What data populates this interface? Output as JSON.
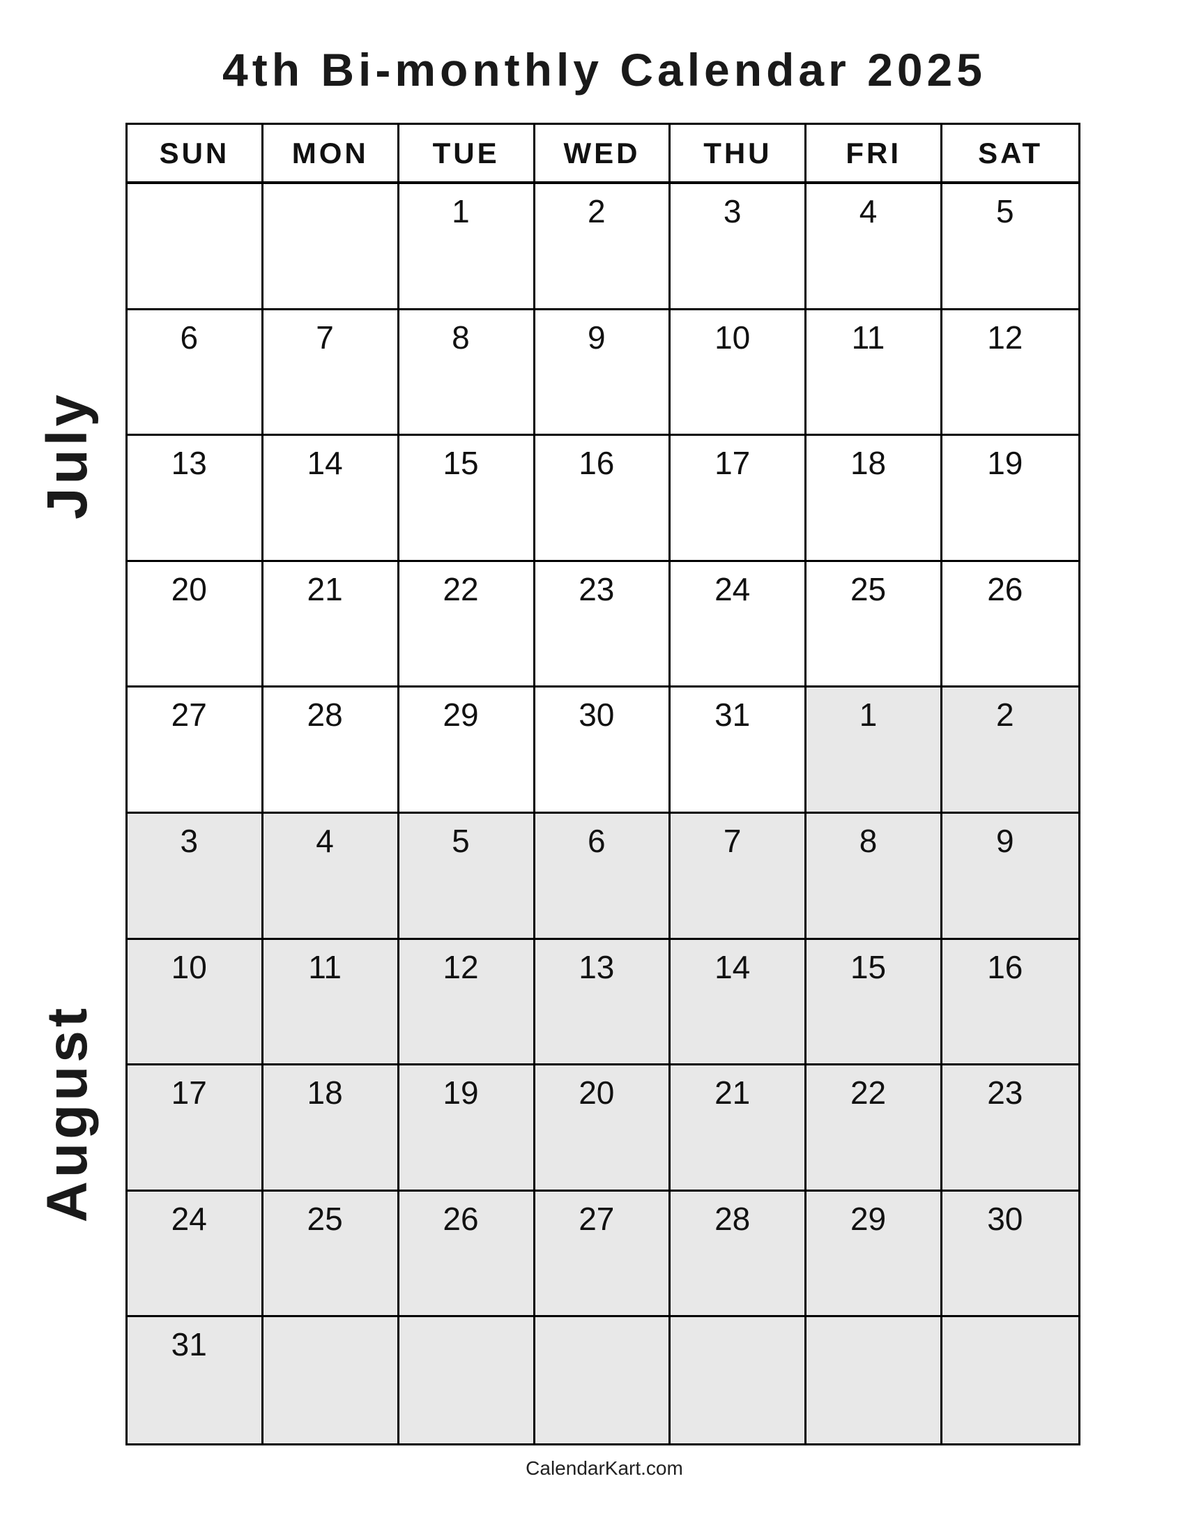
{
  "title": "4th Bi-monthly Calendar 2025",
  "months": [
    "July",
    "August"
  ],
  "weekdays": [
    "SUN",
    "MON",
    "TUE",
    "WED",
    "THU",
    "FRI",
    "SAT"
  ],
  "shade_color": "#e8e8e8",
  "weeks": [
    [
      {
        "d": "",
        "s": false
      },
      {
        "d": "",
        "s": false
      },
      {
        "d": "1",
        "s": false
      },
      {
        "d": "2",
        "s": false
      },
      {
        "d": "3",
        "s": false
      },
      {
        "d": "4",
        "s": false
      },
      {
        "d": "5",
        "s": false
      }
    ],
    [
      {
        "d": "6",
        "s": false
      },
      {
        "d": "7",
        "s": false
      },
      {
        "d": "8",
        "s": false
      },
      {
        "d": "9",
        "s": false
      },
      {
        "d": "10",
        "s": false
      },
      {
        "d": "11",
        "s": false
      },
      {
        "d": "12",
        "s": false
      }
    ],
    [
      {
        "d": "13",
        "s": false
      },
      {
        "d": "14",
        "s": false
      },
      {
        "d": "15",
        "s": false
      },
      {
        "d": "16",
        "s": false
      },
      {
        "d": "17",
        "s": false
      },
      {
        "d": "18",
        "s": false
      },
      {
        "d": "19",
        "s": false
      }
    ],
    [
      {
        "d": "20",
        "s": false
      },
      {
        "d": "21",
        "s": false
      },
      {
        "d": "22",
        "s": false
      },
      {
        "d": "23",
        "s": false
      },
      {
        "d": "24",
        "s": false
      },
      {
        "d": "25",
        "s": false
      },
      {
        "d": "26",
        "s": false
      }
    ],
    [
      {
        "d": "27",
        "s": false
      },
      {
        "d": "28",
        "s": false
      },
      {
        "d": "29",
        "s": false
      },
      {
        "d": "30",
        "s": false
      },
      {
        "d": "31",
        "s": false
      },
      {
        "d": "1",
        "s": true
      },
      {
        "d": "2",
        "s": true
      }
    ],
    [
      {
        "d": "3",
        "s": true
      },
      {
        "d": "4",
        "s": true
      },
      {
        "d": "5",
        "s": true
      },
      {
        "d": "6",
        "s": true
      },
      {
        "d": "7",
        "s": true
      },
      {
        "d": "8",
        "s": true
      },
      {
        "d": "9",
        "s": true
      }
    ],
    [
      {
        "d": "10",
        "s": true
      },
      {
        "d": "11",
        "s": true
      },
      {
        "d": "12",
        "s": true
      },
      {
        "d": "13",
        "s": true
      },
      {
        "d": "14",
        "s": true
      },
      {
        "d": "15",
        "s": true
      },
      {
        "d": "16",
        "s": true
      }
    ],
    [
      {
        "d": "17",
        "s": true
      },
      {
        "d": "18",
        "s": true
      },
      {
        "d": "19",
        "s": true
      },
      {
        "d": "20",
        "s": true
      },
      {
        "d": "21",
        "s": true
      },
      {
        "d": "22",
        "s": true
      },
      {
        "d": "23",
        "s": true
      }
    ],
    [
      {
        "d": "24",
        "s": true
      },
      {
        "d": "25",
        "s": true
      },
      {
        "d": "26",
        "s": true
      },
      {
        "d": "27",
        "s": true
      },
      {
        "d": "28",
        "s": true
      },
      {
        "d": "29",
        "s": true
      },
      {
        "d": "30",
        "s": true
      }
    ],
    [
      {
        "d": "31",
        "s": true
      },
      {
        "d": "",
        "s": true
      },
      {
        "d": "",
        "s": true
      },
      {
        "d": "",
        "s": true
      },
      {
        "d": "",
        "s": true
      },
      {
        "d": "",
        "s": true
      },
      {
        "d": "",
        "s": true
      }
    ]
  ],
  "footer": "CalendarKart.com"
}
